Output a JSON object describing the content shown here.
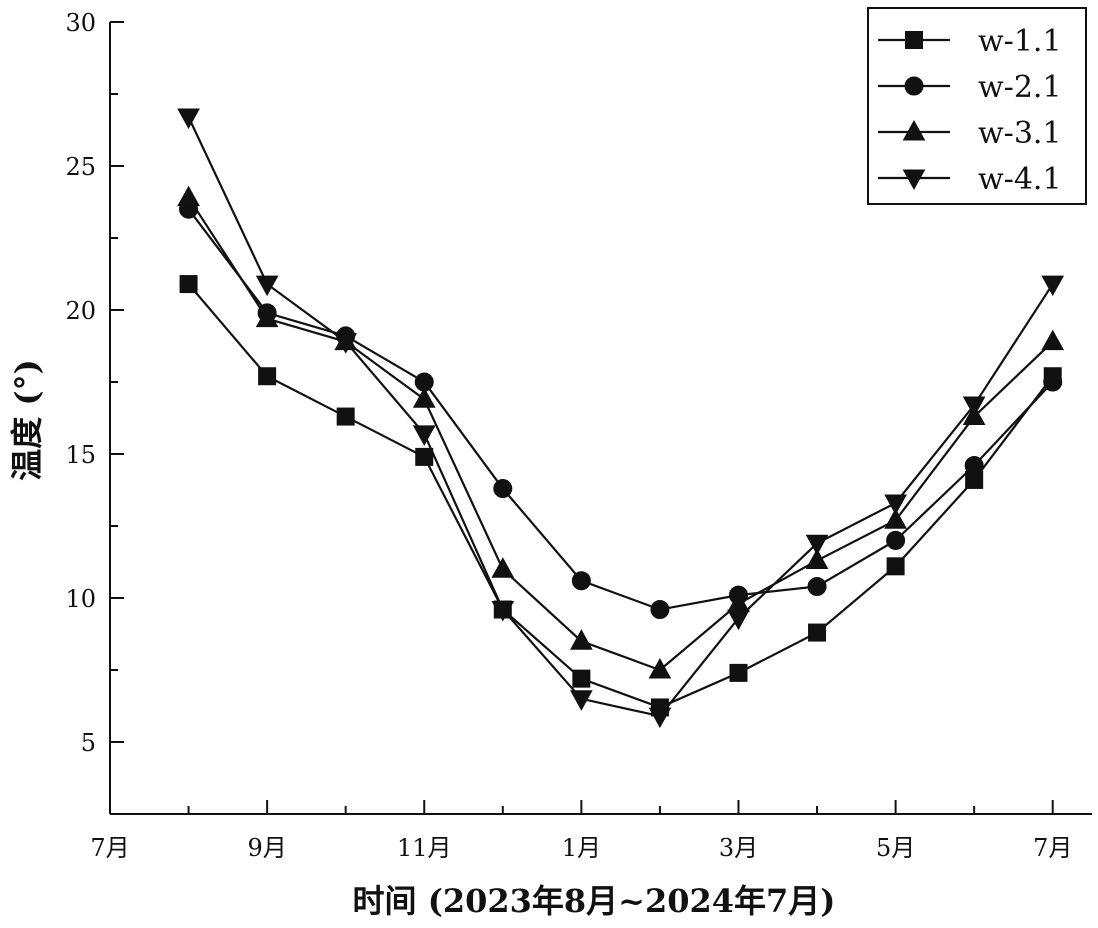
{
  "chart_data": {
    "type": "line",
    "xlabel": "时间 (2023年8月~2024年7月)",
    "ylabel": "温度 (°)",
    "xlim": [
      7,
      19.5
    ],
    "ylim": [
      2.5,
      30
    ],
    "yticks": [
      5,
      10,
      15,
      20,
      25,
      30
    ],
    "xticks": [
      {
        "x": 7,
        "label": "7月"
      },
      {
        "x": 9,
        "label": "9月"
      },
      {
        "x": 11,
        "label": "11月"
      },
      {
        "x": 13,
        "label": "1月"
      },
      {
        "x": 15,
        "label": "3月"
      },
      {
        "x": 17,
        "label": "5月"
      },
      {
        "x": 19,
        "label": "7月"
      }
    ],
    "x": [
      8,
      9,
      10,
      11,
      12,
      13,
      14,
      15,
      16,
      17,
      18,
      19
    ],
    "series": [
      {
        "name": "w-1.1",
        "marker": "square",
        "values": [
          20.9,
          17.7,
          16.3,
          14.9,
          9.6,
          7.2,
          6.2,
          7.4,
          8.8,
          11.1,
          14.1,
          17.7
        ]
      },
      {
        "name": "w-2.1",
        "marker": "circle",
        "values": [
          23.5,
          19.9,
          19.1,
          17.5,
          13.8,
          10.6,
          9.6,
          10.1,
          10.4,
          12.0,
          14.6,
          17.5
        ]
      },
      {
        "name": "w-3.1",
        "marker": "triangle-up",
        "values": [
          23.9,
          19.7,
          18.9,
          16.9,
          11.0,
          8.5,
          7.5,
          9.8,
          11.3,
          12.7,
          16.3,
          18.9
        ]
      },
      {
        "name": "w-4.1",
        "marker": "triangle-down",
        "values": [
          26.7,
          20.9,
          18.9,
          15.7,
          9.6,
          6.5,
          5.9,
          9.3,
          11.9,
          13.3,
          16.7,
          20.9
        ]
      }
    ],
    "legend": "top-right",
    "grid": false
  }
}
